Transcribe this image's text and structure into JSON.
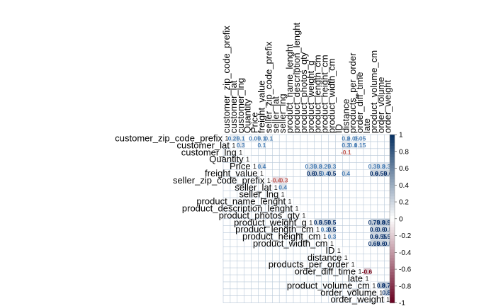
{
  "chart_data": {
    "type": "heatmap",
    "variables": [
      "customer_zip_code_prefix",
      "customer_lat",
      "customer_lng",
      "Quantity",
      "Price",
      "freight_value",
      "seller_zip_code_prefix",
      "seller_lat",
      "seller_lng",
      "product_name_lenght",
      "product_description_lenght",
      "product_photos_qty",
      "product_weight_g",
      "product_length_cm",
      "product_height_cm",
      "product_width_cm",
      "ID",
      "distance",
      "products_per_order",
      "order_diff_time",
      "late",
      "product_volume_cm",
      "order_volume",
      "order_weight"
    ],
    "diagonal_label": "1",
    "legend_ticks": [
      "1",
      "0.8",
      "0.6",
      "0.4",
      "0.2",
      "0",
      "-0.2",
      "-0.4",
      "-0.6",
      "-0.8",
      "-1"
    ],
    "legend_range": [
      -1,
      1
    ],
    "color_scale": {
      "low": "#67001f",
      "mid": "#ffffff",
      "high": "#053061"
    },
    "grid": true,
    "layout": "upper-triangle",
    "cells": [
      {
        "row": 0,
        "col": 1,
        "value": 0.25,
        "label": "0.25"
      },
      {
        "row": 0,
        "col": 2,
        "value": 0.1,
        "label": "0.1"
      },
      {
        "row": 0,
        "col": 4,
        "value": 0.05,
        "label": "0.05"
      },
      {
        "row": 0,
        "col": 5,
        "value": 0.1,
        "label": "0.1"
      },
      {
        "row": 0,
        "col": 6,
        "value": 0.1,
        "label": "0.1"
      },
      {
        "row": 0,
        "col": 17,
        "value": 0.2,
        "label": "0.2"
      },
      {
        "row": 0,
        "col": 18,
        "value": 0.05,
        "label": "0.05"
      },
      {
        "row": 0,
        "col": 19,
        "value": 0.05,
        "label": "0.05"
      },
      {
        "row": 1,
        "col": 2,
        "value": 0.3,
        "label": "0.3"
      },
      {
        "row": 1,
        "col": 5,
        "value": 0.1,
        "label": "0.1"
      },
      {
        "row": 1,
        "col": 17,
        "value": 0.3,
        "label": "0.3"
      },
      {
        "row": 1,
        "col": 18,
        "value": 0.1,
        "label": "0.1"
      },
      {
        "row": 1,
        "col": 19,
        "value": 0.15,
        "label": "0.15"
      },
      {
        "row": 2,
        "col": 17,
        "value": -0.1,
        "label": "-0.1"
      },
      {
        "row": 4,
        "col": 5,
        "value": 0.4,
        "label": "0.4"
      },
      {
        "row": 4,
        "col": 12,
        "value": 0.35,
        "label": "0.35"
      },
      {
        "row": 4,
        "col": 13,
        "value": 0.3,
        "label": "0.3"
      },
      {
        "row": 4,
        "col": 14,
        "value": 0.25,
        "label": "0.25"
      },
      {
        "row": 4,
        "col": 15,
        "value": 0.3,
        "label": "0.3"
      },
      {
        "row": 4,
        "col": 21,
        "value": 0.35,
        "label": "0.35"
      },
      {
        "row": 4,
        "col": 22,
        "value": 0.3,
        "label": "0.3"
      },
      {
        "row": 4,
        "col": 23,
        "value": 0.35,
        "label": "0.35"
      },
      {
        "row": 5,
        "col": 12,
        "value": 0.6,
        "label": "0.6"
      },
      {
        "row": 5,
        "col": 13,
        "value": 0.5,
        "label": "0.5"
      },
      {
        "row": 5,
        "col": 14,
        "value": 0.4,
        "label": "0.4"
      },
      {
        "row": 5,
        "col": 15,
        "value": 0.5,
        "label": "0.5"
      },
      {
        "row": 5,
        "col": 17,
        "value": 0.4,
        "label": "0.4"
      },
      {
        "row": 5,
        "col": 21,
        "value": 0.6,
        "label": "0.6"
      },
      {
        "row": 5,
        "col": 22,
        "value": 0.55,
        "label": "0.55"
      },
      {
        "row": 5,
        "col": 23,
        "value": 0.6,
        "label": "0.6"
      },
      {
        "row": 6,
        "col": 7,
        "value": -0.4,
        "label": "-0.4"
      },
      {
        "row": 6,
        "col": 8,
        "value": -0.3,
        "label": "-0.3"
      },
      {
        "row": 7,
        "col": 8,
        "value": 0.4,
        "label": "0.4"
      },
      {
        "row": 12,
        "col": 13,
        "value": 0.5,
        "label": "0.5"
      },
      {
        "row": 12,
        "col": 14,
        "value": 0.55,
        "label": "0.55"
      },
      {
        "row": 12,
        "col": 15,
        "value": 0.5,
        "label": "0.5"
      },
      {
        "row": 12,
        "col": 21,
        "value": 0.75,
        "label": "0.75"
      },
      {
        "row": 12,
        "col": 22,
        "value": 0.8,
        "label": "0.8"
      },
      {
        "row": 12,
        "col": 23,
        "value": 0.93,
        "label": "0.93"
      },
      {
        "row": 13,
        "col": 14,
        "value": 0.2,
        "label": "0.2"
      },
      {
        "row": 13,
        "col": 15,
        "value": 0.5,
        "label": "0.5"
      },
      {
        "row": 13,
        "col": 21,
        "value": 0.6,
        "label": "0.6"
      },
      {
        "row": 13,
        "col": 22,
        "value": 0.6,
        "label": "0.6"
      },
      {
        "row": 13,
        "col": 23,
        "value": 0.5,
        "label": "0.5"
      },
      {
        "row": 14,
        "col": 15,
        "value": 0.3,
        "label": "0.3"
      },
      {
        "row": 14,
        "col": 21,
        "value": 0.6,
        "label": "0.6"
      },
      {
        "row": 14,
        "col": 22,
        "value": 0.55,
        "label": "0.55"
      },
      {
        "row": 14,
        "col": 23,
        "value": 0.55,
        "label": "0.55"
      },
      {
        "row": 15,
        "col": 21,
        "value": 0.65,
        "label": "0.65"
      },
      {
        "row": 15,
        "col": 22,
        "value": 0.6,
        "label": "0.6"
      },
      {
        "row": 15,
        "col": 23,
        "value": 0.5,
        "label": "0.5"
      },
      {
        "row": 19,
        "col": 20,
        "value": -0.6,
        "label": "-0.6"
      },
      {
        "row": 21,
        "col": 22,
        "value": 0.8,
        "label": "0.8"
      },
      {
        "row": 21,
        "col": 23,
        "value": 0.76,
        "label": "0.76"
      },
      {
        "row": 22,
        "col": 23,
        "value": 0.82,
        "label": "0.82"
      }
    ]
  }
}
